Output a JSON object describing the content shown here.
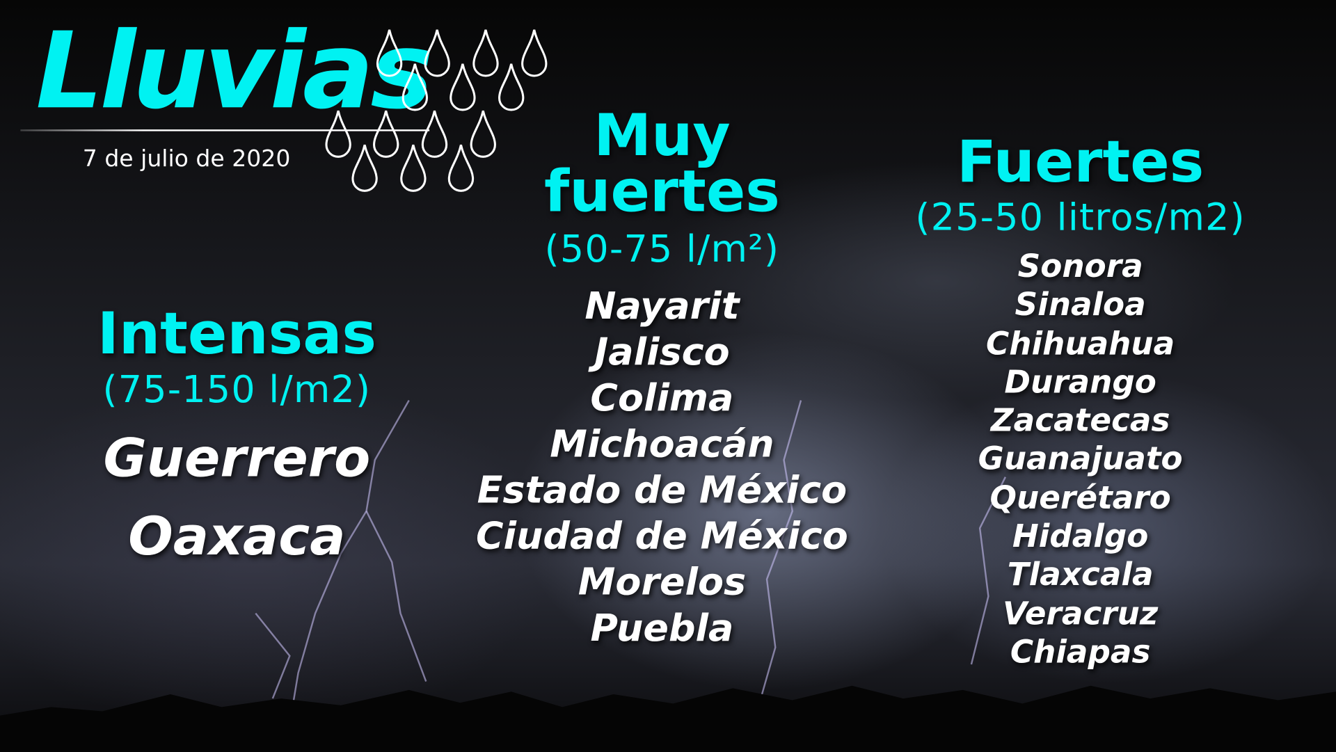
{
  "header": {
    "title": "Lluvias",
    "date": "7 de julio de 2020"
  },
  "colors": {
    "accent": "#00f2f2",
    "text": "#ffffff",
    "background": "#000000"
  },
  "icons": [
    "raindrop-icon"
  ],
  "columns": [
    {
      "heading": [
        "Intensas"
      ],
      "range": "(75-150 l/m2)",
      "states": [
        "Guerrero",
        "Oaxaca"
      ]
    },
    {
      "heading": [
        "Muy",
        "fuertes"
      ],
      "range": "(50-75 l/m²)",
      "states": [
        "Nayarit",
        "Jalisco",
        "Colima",
        "Michoacán",
        "Estado de México",
        "Ciudad de México",
        "Morelos",
        "Puebla"
      ]
    },
    {
      "heading": [
        "Fuertes"
      ],
      "range": "(25-50 litros/m2)",
      "states": [
        "Sonora",
        "Sinaloa",
        "Chihuahua",
        "Durango",
        "Zacatecas",
        "Guanajuato",
        "Querétaro",
        "Hidalgo",
        "Tlaxcala",
        "Veracruz",
        "Chiapas"
      ]
    }
  ]
}
